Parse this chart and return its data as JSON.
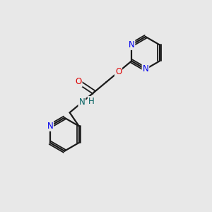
{
  "background_color": "#e8e8e8",
  "bond_color": "#1a1a1a",
  "N_color": "#0000ee",
  "O_color": "#dd0000",
  "N_amide_color": "#006060",
  "H_color": "#006060",
  "figsize": [
    3.0,
    3.0
  ],
  "dpi": 100,
  "xlim": [
    0,
    10
  ],
  "ylim": [
    0,
    10
  ]
}
